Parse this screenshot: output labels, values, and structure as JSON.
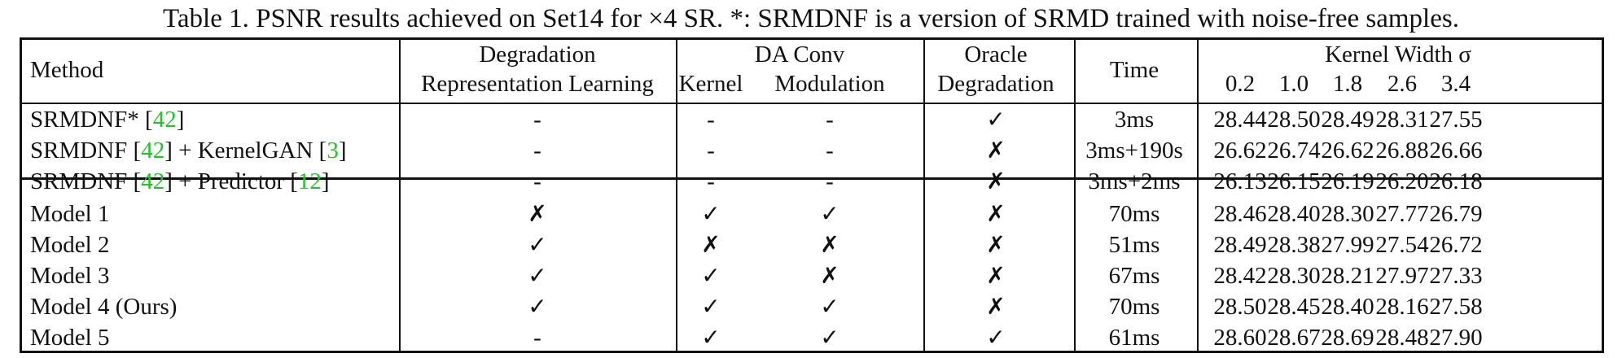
{
  "caption": "Table 1. PSNR results achieved on Set14 for ×4 SR. *: SRMDNF is a version of SRMD trained with noise-free samples.",
  "header": {
    "method": "Method",
    "drl_line1": "Degradation",
    "drl_line2": "Representation Learning",
    "daconv": "DA Conv",
    "kernel": "Kernel",
    "modulation": "Modulation",
    "oracle_line1": "Oracle",
    "oracle_line2": "Degradation",
    "time": "Time",
    "kernel_width": "Kernel Width σ",
    "widths": [
      "0.2",
      "1.0",
      "1.8",
      "2.6",
      "3.4"
    ]
  },
  "rows": [
    {
      "method_parts": [
        "SRMDNF* [",
        "42",
        "]"
      ],
      "drl": "-",
      "kernel": "-",
      "modulation": "-",
      "oracle": "✓",
      "time": "3ms",
      "psnr": [
        "28.44",
        "28.50",
        "28.49",
        "28.31",
        "27.55"
      ]
    },
    {
      "method_parts": [
        "SRMDNF [",
        "42",
        "] + KernelGAN [",
        "3",
        "]"
      ],
      "drl": "-",
      "kernel": "-",
      "modulation": "-",
      "oracle": "✗",
      "time": "3ms+190s",
      "psnr": [
        "26.62",
        "26.74",
        "26.62",
        "26.88",
        "26.66"
      ]
    },
    {
      "method_parts": [
        "SRMDNF [",
        "42",
        "] + Predictor [",
        "12",
        "]"
      ],
      "drl": "-",
      "kernel": "-",
      "modulation": "-",
      "oracle": "✗",
      "time": "3ms+2ms",
      "psnr": [
        "26.13",
        "26.15",
        "26.19",
        "26.20",
        "26.18"
      ]
    },
    {
      "method_parts": [
        "Model 1"
      ],
      "drl": "✗",
      "kernel": "✓",
      "modulation": "✓",
      "oracle": "✗",
      "time": "70ms",
      "psnr": [
        "28.46",
        "28.40",
        "28.30",
        "27.77",
        "26.79"
      ]
    },
    {
      "method_parts": [
        "Model 2"
      ],
      "drl": "✓",
      "kernel": "✗",
      "modulation": "✗",
      "oracle": "✗",
      "time": "51ms",
      "psnr": [
        "28.49",
        "28.38",
        "27.99",
        "27.54",
        "26.72"
      ]
    },
    {
      "method_parts": [
        "Model 3"
      ],
      "drl": "✓",
      "kernel": "✓",
      "modulation": "✗",
      "oracle": "✗",
      "time": "67ms",
      "psnr": [
        "28.42",
        "28.30",
        "28.21",
        "27.97",
        "27.33"
      ]
    },
    {
      "method_parts": [
        "Model 4 (Ours)"
      ],
      "drl": "✓",
      "kernel": "✓",
      "modulation": "✓",
      "oracle": "✗",
      "time": "70ms",
      "psnr": [
        "28.50",
        "28.45",
        "28.40",
        "28.16",
        "27.58"
      ]
    },
    {
      "method_parts": [
        "Model 5"
      ],
      "drl": "-",
      "kernel": "✓",
      "modulation": "✓",
      "oracle": "✓",
      "time": "61ms",
      "psnr": [
        "28.60",
        "28.67",
        "28.69",
        "28.48",
        "27.90"
      ]
    }
  ]
}
